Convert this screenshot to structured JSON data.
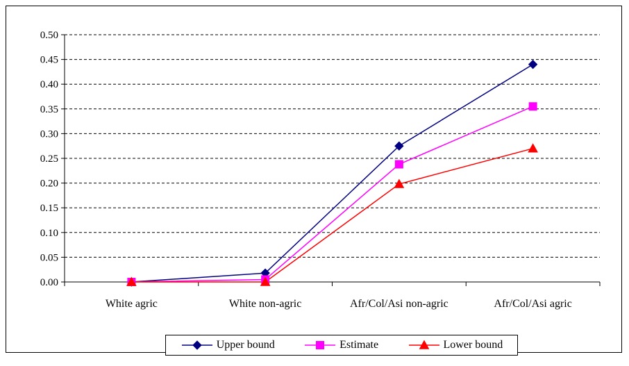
{
  "chart_data": {
    "type": "line",
    "title": "",
    "xlabel": "",
    "ylabel": "",
    "categories": [
      "White agric",
      "White non-agric",
      "Afr/Col/Asi non-agric",
      "Afr/Col/Asi agric"
    ],
    "ylim": [
      0,
      0.5
    ],
    "yticks": [
      "0.00",
      "0.05",
      "0.10",
      "0.15",
      "0.20",
      "0.25",
      "0.30",
      "0.35",
      "0.40",
      "0.45",
      "0.50"
    ],
    "grid": "horizontal dashed",
    "legend_position": "bottom",
    "series": [
      {
        "name": "Upper bound",
        "values": [
          0.0,
          0.018,
          0.275,
          0.44
        ],
        "color": "#000080",
        "marker": "diamond"
      },
      {
        "name": "Estimate",
        "values": [
          0.0,
          0.005,
          0.238,
          0.355
        ],
        "color": "#FF00FF",
        "marker": "square"
      },
      {
        "name": "Lower bound",
        "values": [
          0.0,
          0.0,
          0.198,
          0.27
        ],
        "color": "#FF0000",
        "marker": "triangle"
      }
    ]
  }
}
